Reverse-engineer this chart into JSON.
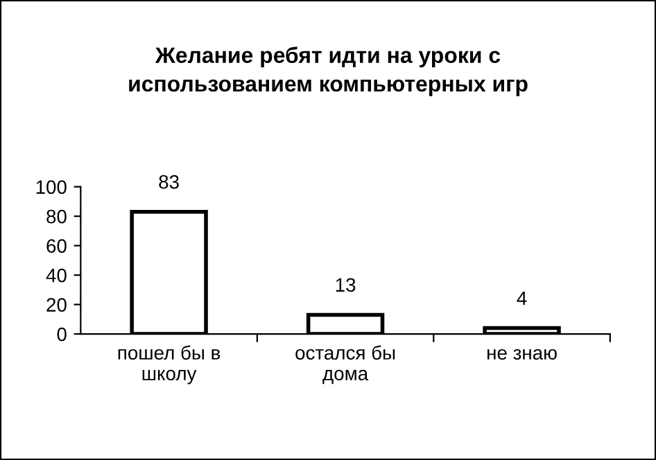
{
  "chart_data": {
    "type": "bar",
    "title": "Желание ребят идти на уроки с\nиспользованием компьютерных игр",
    "categories": [
      "пошел бы в\nшколу",
      "остался бы\nдома",
      "не знаю"
    ],
    "values": [
      83,
      13,
      4
    ],
    "color": "#ffffff",
    "ylim": [
      0,
      100
    ],
    "yticks": [
      0,
      20,
      40,
      60,
      80,
      100
    ],
    "grid": false,
    "legend": false,
    "data_labels": true
  }
}
